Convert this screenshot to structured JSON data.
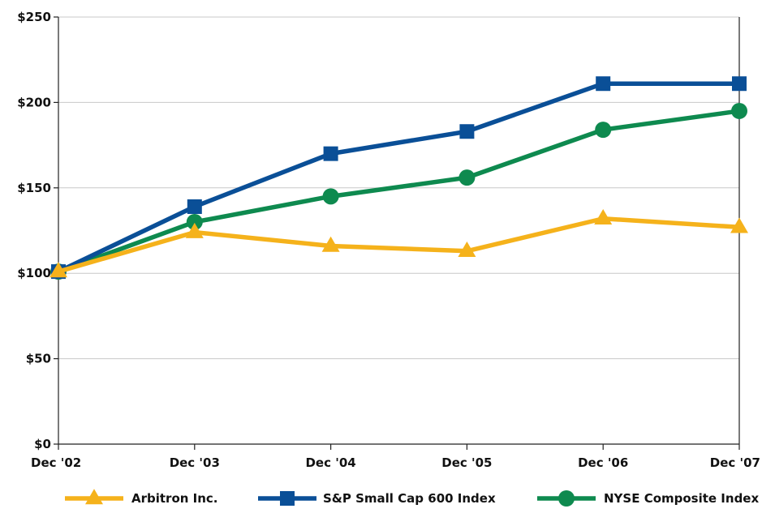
{
  "chart_data": {
    "type": "line",
    "title": "",
    "xlabel": "",
    "ylabel": "",
    "categories": [
      "Dec '02",
      "Dec '03",
      "Dec '04",
      "Dec '05",
      "Dec '06",
      "Dec '07"
    ],
    "ylim": [
      0,
      250
    ],
    "yticks": [
      0,
      50,
      100,
      150,
      200,
      250
    ],
    "ytick_labels": [
      "$0",
      "$50",
      "$100",
      "$150",
      "$200",
      "$250"
    ],
    "grid": "horizontal",
    "legend_position": "bottom",
    "series": [
      {
        "name": "Arbitron Inc.",
        "color": "#F5B21B",
        "marker": "triangle",
        "values": [
          101,
          124,
          116,
          113,
          132,
          127
        ]
      },
      {
        "name": "S&P Small Cap 600 Index",
        "color": "#0A4F97",
        "marker": "square",
        "values": [
          101,
          139,
          170,
          183,
          211,
          211
        ]
      },
      {
        "name": "NYSE Composite Index",
        "color": "#0E8A4F",
        "marker": "circle",
        "values": [
          101,
          130,
          145,
          156,
          184,
          195
        ]
      }
    ]
  }
}
